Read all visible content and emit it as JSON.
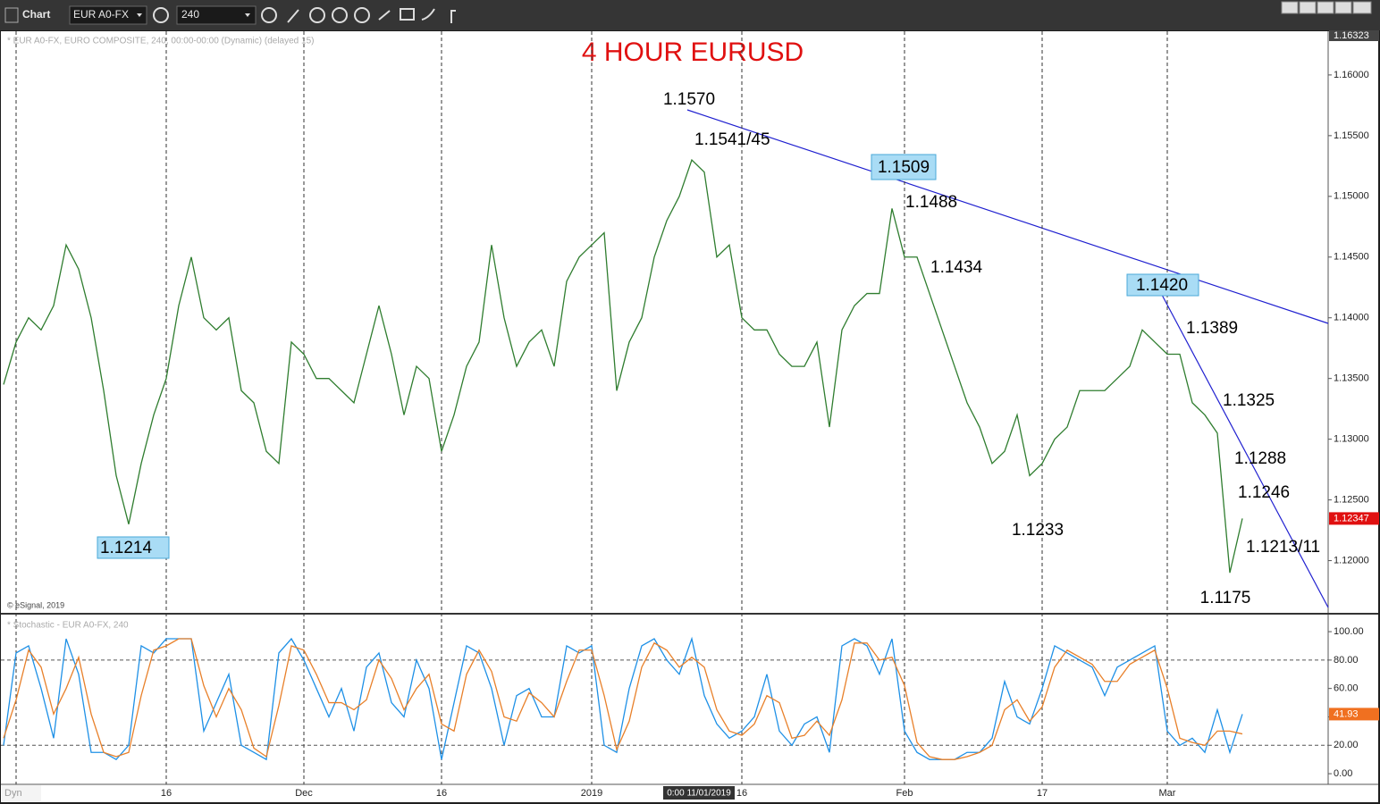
{
  "toolbar": {
    "title": "Chart",
    "symbol": "EUR A0-FX",
    "interval": "240"
  },
  "status": {
    "mode": "Dyn",
    "cursor_time": "0:00 11/01/2019"
  },
  "chart_data": [
    {
      "type": "line",
      "title": "4 HOUR EURUSD",
      "subtitle": "* EUR A0-FX, EURO COMPOSITE, 240, 00:00-00:00 (Dynamic) (delayed 15)",
      "source": "© eSignal, 2019",
      "color": "#2f7d2f",
      "categories": [
        null,
        null,
        null,
        null,
        null,
        null,
        null,
        null,
        null,
        null,
        null,
        null,
        null,
        "16",
        null,
        null,
        null,
        null,
        null,
        null,
        null,
        null,
        null,
        null,
        "Dec",
        null,
        null,
        null,
        null,
        null,
        null,
        null,
        null,
        null,
        null,
        "16",
        null,
        null,
        null,
        null,
        null,
        null,
        null,
        null,
        null,
        null,
        null,
        "2019",
        null,
        null,
        null,
        null,
        null,
        null,
        null,
        null,
        null,
        null,
        null,
        "16",
        null,
        null,
        null,
        null,
        null,
        null,
        null,
        null,
        null,
        null,
        null,
        null,
        "Feb",
        null,
        null,
        null,
        null,
        null,
        null,
        null,
        null,
        null,
        null,
        "17",
        null,
        null,
        null,
        null,
        null,
        null,
        null,
        null,
        null,
        "Mar",
        null,
        null,
        null,
        null,
        null,
        null
      ],
      "values": [
        1.1345,
        1.138,
        1.14,
        1.139,
        1.141,
        1.146,
        1.144,
        1.14,
        1.134,
        1.127,
        1.123,
        1.128,
        1.132,
        1.135,
        1.141,
        1.145,
        1.14,
        1.139,
        1.14,
        1.134,
        1.133,
        1.129,
        1.128,
        1.138,
        1.137,
        1.135,
        1.135,
        1.134,
        1.133,
        1.137,
        1.141,
        1.137,
        1.132,
        1.136,
        1.135,
        1.129,
        1.132,
        1.136,
        1.138,
        1.146,
        1.14,
        1.136,
        1.138,
        1.139,
        1.136,
        1.143,
        1.145,
        1.146,
        1.147,
        1.134,
        1.138,
        1.14,
        1.145,
        1.148,
        1.15,
        1.153,
        1.152,
        1.145,
        1.146,
        1.14,
        1.139,
        1.139,
        1.137,
        1.136,
        1.136,
        1.138,
        1.131,
        1.139,
        1.141,
        1.142,
        1.142,
        1.149,
        1.145,
        1.145,
        1.142,
        1.139,
        1.136,
        1.133,
        1.131,
        1.128,
        1.129,
        1.132,
        1.127,
        1.128,
        1.13,
        1.131,
        1.134,
        1.134,
        1.134,
        1.135,
        1.136,
        1.139,
        1.138,
        1.137,
        1.137,
        1.133,
        1.132,
        1.1305,
        1.119,
        1.12347
      ],
      "ylim": [
        1.1157,
        1.16323
      ],
      "yticks": [
        {
          "value": 1.12,
          "label": "1.12000"
        },
        {
          "value": 1.125,
          "label": "1.12500"
        },
        {
          "value": 1.13,
          "label": "1.13000"
        },
        {
          "value": 1.135,
          "label": "1.13500"
        },
        {
          "value": 1.14,
          "label": "1.14000"
        },
        {
          "value": 1.145,
          "label": "1.14500"
        },
        {
          "value": 1.15,
          "label": "1.15000"
        },
        {
          "value": 1.155,
          "label": "1.15500"
        },
        {
          "value": 1.16,
          "label": "1.16000"
        }
      ],
      "annotations": [
        "1.1570",
        "1.1541/45",
        "1.1509",
        "1.1488",
        "1.1434",
        "1.1420",
        "1.1389",
        "1.1325",
        "1.1288",
        "1.1246",
        "1.1213/11",
        "1.1175",
        "1.1233",
        "1.1214"
      ]
    },
    {
      "type": "line",
      "title": "* Stochastic - EUR A0-FX, 240",
      "series": [
        {
          "color": "#1e90e6",
          "values": [
            20,
            85,
            90,
            60,
            25,
            95,
            70,
            15,
            15,
            10,
            20,
            90,
            85,
            95,
            95,
            95,
            30,
            50,
            70,
            20,
            15,
            10,
            85,
            95,
            80,
            60,
            40,
            60,
            30,
            75,
            85,
            50,
            40,
            80,
            60,
            10,
            50,
            90,
            85,
            60,
            20,
            55,
            60,
            40,
            40,
            90,
            85,
            90,
            20,
            15,
            60,
            90,
            95,
            80,
            70,
            95,
            55,
            35,
            25,
            30,
            40,
            70,
            30,
            20,
            35,
            40,
            15,
            90,
            95,
            90,
            70,
            95,
            30,
            15,
            10,
            10,
            10,
            15,
            15,
            25,
            65,
            40,
            35,
            60,
            90,
            85,
            80,
            75,
            55,
            75,
            80,
            85,
            90,
            30,
            20,
            25,
            15,
            45,
            15,
            41.93
          ]
        },
        {
          "color": "#e8802a",
          "values": [
            25,
            52,
            87,
            75,
            42,
            60,
            82,
            42,
            15,
            12,
            15,
            55,
            87,
            90,
            95,
            95,
            62,
            40,
            60,
            45,
            18,
            12,
            48,
            90,
            87,
            70,
            50,
            50,
            45,
            52,
            80,
            67,
            45,
            60,
            70,
            35,
            30,
            70,
            87,
            72,
            40,
            37,
            57,
            50,
            40,
            65,
            87,
            87,
            55,
            17,
            37,
            75,
            92,
            87,
            75,
            82,
            75,
            45,
            30,
            27,
            35,
            55,
            50,
            25,
            27,
            37,
            27,
            52,
            92,
            92,
            80,
            82,
            62,
            22,
            12,
            10,
            10,
            12,
            15,
            20,
            45,
            52,
            37,
            47,
            75,
            87,
            82,
            77,
            65,
            65,
            77,
            82,
            87,
            60,
            25,
            22,
            20,
            30,
            30,
            28
          ]
        }
      ],
      "ylim": [
        -7.5,
        112
      ],
      "yticks": [
        {
          "value": 0,
          "label": "0.00"
        },
        {
          "value": 20,
          "label": "20.00"
        },
        {
          "value": 40,
          "label": "40.00"
        },
        {
          "value": 60,
          "label": "60.00"
        },
        {
          "value": 80,
          "label": "80.00"
        },
        {
          "value": 100,
          "label": "100.00"
        }
      ],
      "levels": [
        20,
        80
      ]
    }
  ]
}
